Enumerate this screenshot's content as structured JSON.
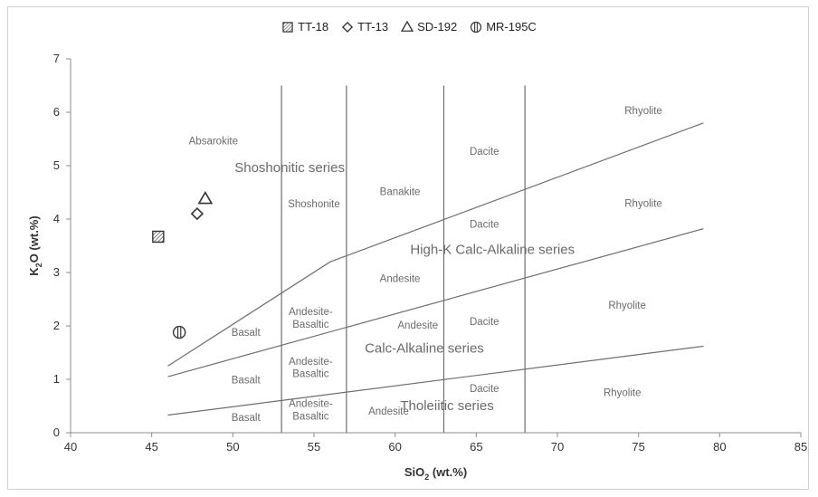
{
  "chart_data": {
    "type": "scatter",
    "xlabel": "SiO2 (wt.%)",
    "xlabel_parts": [
      "SiO",
      "2",
      " (wt.%)"
    ],
    "ylabel": "K2O (wt.%)",
    "ylabel_parts": [
      "K",
      "2",
      "O (wt.%)"
    ],
    "xlim": [
      40,
      85
    ],
    "ylim": [
      0,
      7
    ],
    "xticks": [
      40,
      45,
      50,
      55,
      60,
      65,
      70,
      75,
      80,
      85
    ],
    "yticks": [
      0,
      1,
      2,
      3,
      4,
      5,
      6,
      7
    ],
    "grid": false,
    "legend_position": "top",
    "series": [
      {
        "name": "TT-18",
        "marker": "hatched-square",
        "points": [
          [
            45.4,
            3.67
          ]
        ]
      },
      {
        "name": "TT-13",
        "marker": "diamond",
        "points": [
          [
            47.8,
            4.1
          ]
        ]
      },
      {
        "name": "SD-192",
        "marker": "triangle",
        "points": [
          [
            48.3,
            4.38
          ]
        ]
      },
      {
        "name": "MR-195C",
        "marker": "circle-bar",
        "points": [
          [
            46.7,
            1.88
          ]
        ]
      }
    ],
    "boundary_lines": [
      {
        "points": [
          [
            46,
            1.25
          ],
          [
            56,
            3.2
          ],
          [
            79,
            5.8
          ]
        ]
      },
      {
        "points": [
          [
            46,
            1.05
          ],
          [
            79,
            3.82
          ]
        ]
      },
      {
        "points": [
          [
            46,
            0.33
          ],
          [
            79,
            1.62
          ]
        ]
      }
    ],
    "vertical_lines": [
      {
        "x": 53,
        "y": [
          0,
          6.5
        ]
      },
      {
        "x": 57,
        "y": [
          0,
          6.5
        ]
      },
      {
        "x": 63,
        "y": [
          0,
          6.5
        ]
      },
      {
        "x": 68,
        "y": [
          0,
          6.5
        ]
      }
    ],
    "field_labels": [
      {
        "text": "Absarokite",
        "x": 48.8,
        "y": 5.4,
        "size": "small"
      },
      {
        "text": "Shoshonitic series",
        "x": 53.5,
        "y": 4.88,
        "size": "large"
      },
      {
        "text": "Shoshonite",
        "x": 55.0,
        "y": 4.22,
        "size": "small"
      },
      {
        "text": "Banakite",
        "x": 60.3,
        "y": 4.45,
        "size": "small"
      },
      {
        "text": "Dacite",
        "x": 65.5,
        "y": 5.2,
        "size": "small"
      },
      {
        "text": "Rhyolite",
        "x": 75.3,
        "y": 5.97,
        "size": "small"
      },
      {
        "text": "Dacite",
        "x": 65.5,
        "y": 3.84,
        "size": "small"
      },
      {
        "text": "Rhyolite",
        "x": 75.3,
        "y": 4.23,
        "size": "small"
      },
      {
        "text": "High-K Calc-Alkaline series",
        "x": 66.0,
        "y": 3.35,
        "size": "large"
      },
      {
        "text": "Andesite",
        "x": 60.3,
        "y": 2.82,
        "size": "small"
      },
      {
        "text": "Andesite-",
        "x": 54.8,
        "y": 2.2,
        "size": "small"
      },
      {
        "text": "Basaltic",
        "x": 54.8,
        "y": 1.97,
        "size": "small"
      },
      {
        "text": "Basalt",
        "x": 50.8,
        "y": 1.81,
        "size": "small"
      },
      {
        "text": "Andesite",
        "x": 61.4,
        "y": 1.95,
        "size": "small"
      },
      {
        "text": "Dacite",
        "x": 65.5,
        "y": 2.02,
        "size": "small"
      },
      {
        "text": "Rhyolite",
        "x": 74.3,
        "y": 2.32,
        "size": "small"
      },
      {
        "text": "Calc-Alkaline series",
        "x": 61.8,
        "y": 1.5,
        "size": "large"
      },
      {
        "text": "Andesite-",
        "x": 54.8,
        "y": 1.27,
        "size": "small"
      },
      {
        "text": "Basaltic",
        "x": 54.8,
        "y": 1.04,
        "size": "small"
      },
      {
        "text": "Basalt",
        "x": 50.8,
        "y": 0.92,
        "size": "small"
      },
      {
        "text": "Dacite",
        "x": 65.5,
        "y": 0.76,
        "size": "small"
      },
      {
        "text": "Rhyolite",
        "x": 74.0,
        "y": 0.69,
        "size": "small"
      },
      {
        "text": "Andesite-",
        "x": 54.8,
        "y": 0.48,
        "size": "small"
      },
      {
        "text": "Basaltic",
        "x": 54.8,
        "y": 0.25,
        "size": "small"
      },
      {
        "text": "Basalt",
        "x": 50.8,
        "y": 0.22,
        "size": "small"
      },
      {
        "text": "Andesite",
        "x": 59.6,
        "y": 0.34,
        "size": "small"
      },
      {
        "text": "Tholeiitic series",
        "x": 63.2,
        "y": 0.42,
        "size": "large"
      }
    ],
    "colors": {
      "axis": "#8c8c8c",
      "lines": "#6e6e6e",
      "text": "#333333",
      "field_text": "#6a6a6a",
      "marker": "#333333"
    }
  }
}
